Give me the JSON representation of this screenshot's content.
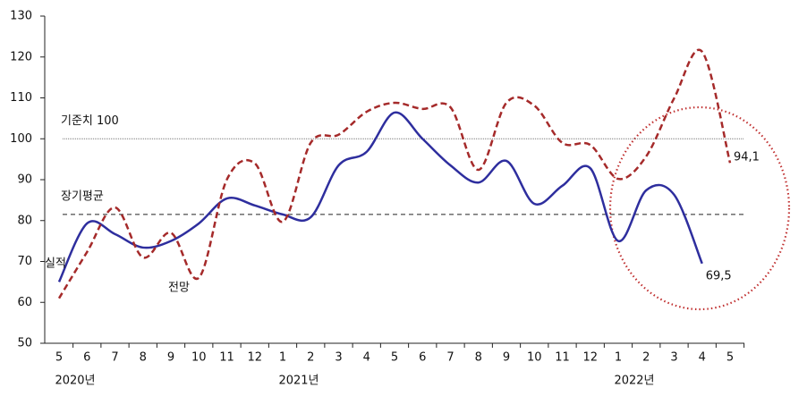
{
  "chart_data": {
    "type": "line",
    "categories": [
      "5",
      "6",
      "7",
      "8",
      "9",
      "10",
      "11",
      "12",
      "1",
      "2",
      "3",
      "4",
      "5",
      "6",
      "7",
      "8",
      "9",
      "10",
      "11",
      "12",
      "1",
      "2",
      "3",
      "4",
      "5"
    ],
    "year_labels": [
      "2020년",
      "2021년",
      "2022년"
    ],
    "series": [
      {
        "name": "실적",
        "color": "#2e2e9e",
        "style": "solid",
        "values": [
          65,
          79.3,
          76.7,
          73.4,
          75,
          79.3,
          85.4,
          83.7,
          81.5,
          80.8,
          93.5,
          96.8,
          106.4,
          100,
          93.5,
          89.3,
          94.6,
          84.1,
          88.5,
          92.8,
          75,
          87.4,
          86.3,
          69.5,
          null
        ],
        "value_labels": [
          null,
          null,
          null,
          null,
          null,
          null,
          null,
          null,
          null,
          null,
          null,
          null,
          null,
          null,
          null,
          null,
          null,
          null,
          null,
          null,
          null,
          null,
          null,
          "69,5",
          null
        ]
      },
      {
        "name": "전망",
        "color": "#a52a2a",
        "style": "dashed",
        "values": [
          61,
          72.3,
          83.2,
          71,
          77,
          66,
          90,
          94,
          79.7,
          99,
          101,
          106.6,
          108.8,
          107.3,
          107.7,
          92.4,
          108.8,
          108.1,
          99,
          98.5,
          90.2,
          95.7,
          109.9,
          121.3,
          94.1
        ],
        "value_labels": [
          null,
          null,
          null,
          null,
          null,
          null,
          null,
          null,
          null,
          null,
          null,
          null,
          null,
          null,
          null,
          null,
          null,
          null,
          null,
          null,
          null,
          null,
          null,
          null,
          "94,1"
        ]
      }
    ],
    "reference_lines": [
      {
        "label": "기준치 100",
        "value": 100,
        "style": "dotted"
      },
      {
        "label": "장기평균",
        "value": 81.5,
        "style": "dashed"
      }
    ],
    "ylim": [
      50,
      130
    ],
    "yticks": [
      50,
      60,
      70,
      80,
      90,
      100,
      110,
      120,
      130
    ]
  }
}
